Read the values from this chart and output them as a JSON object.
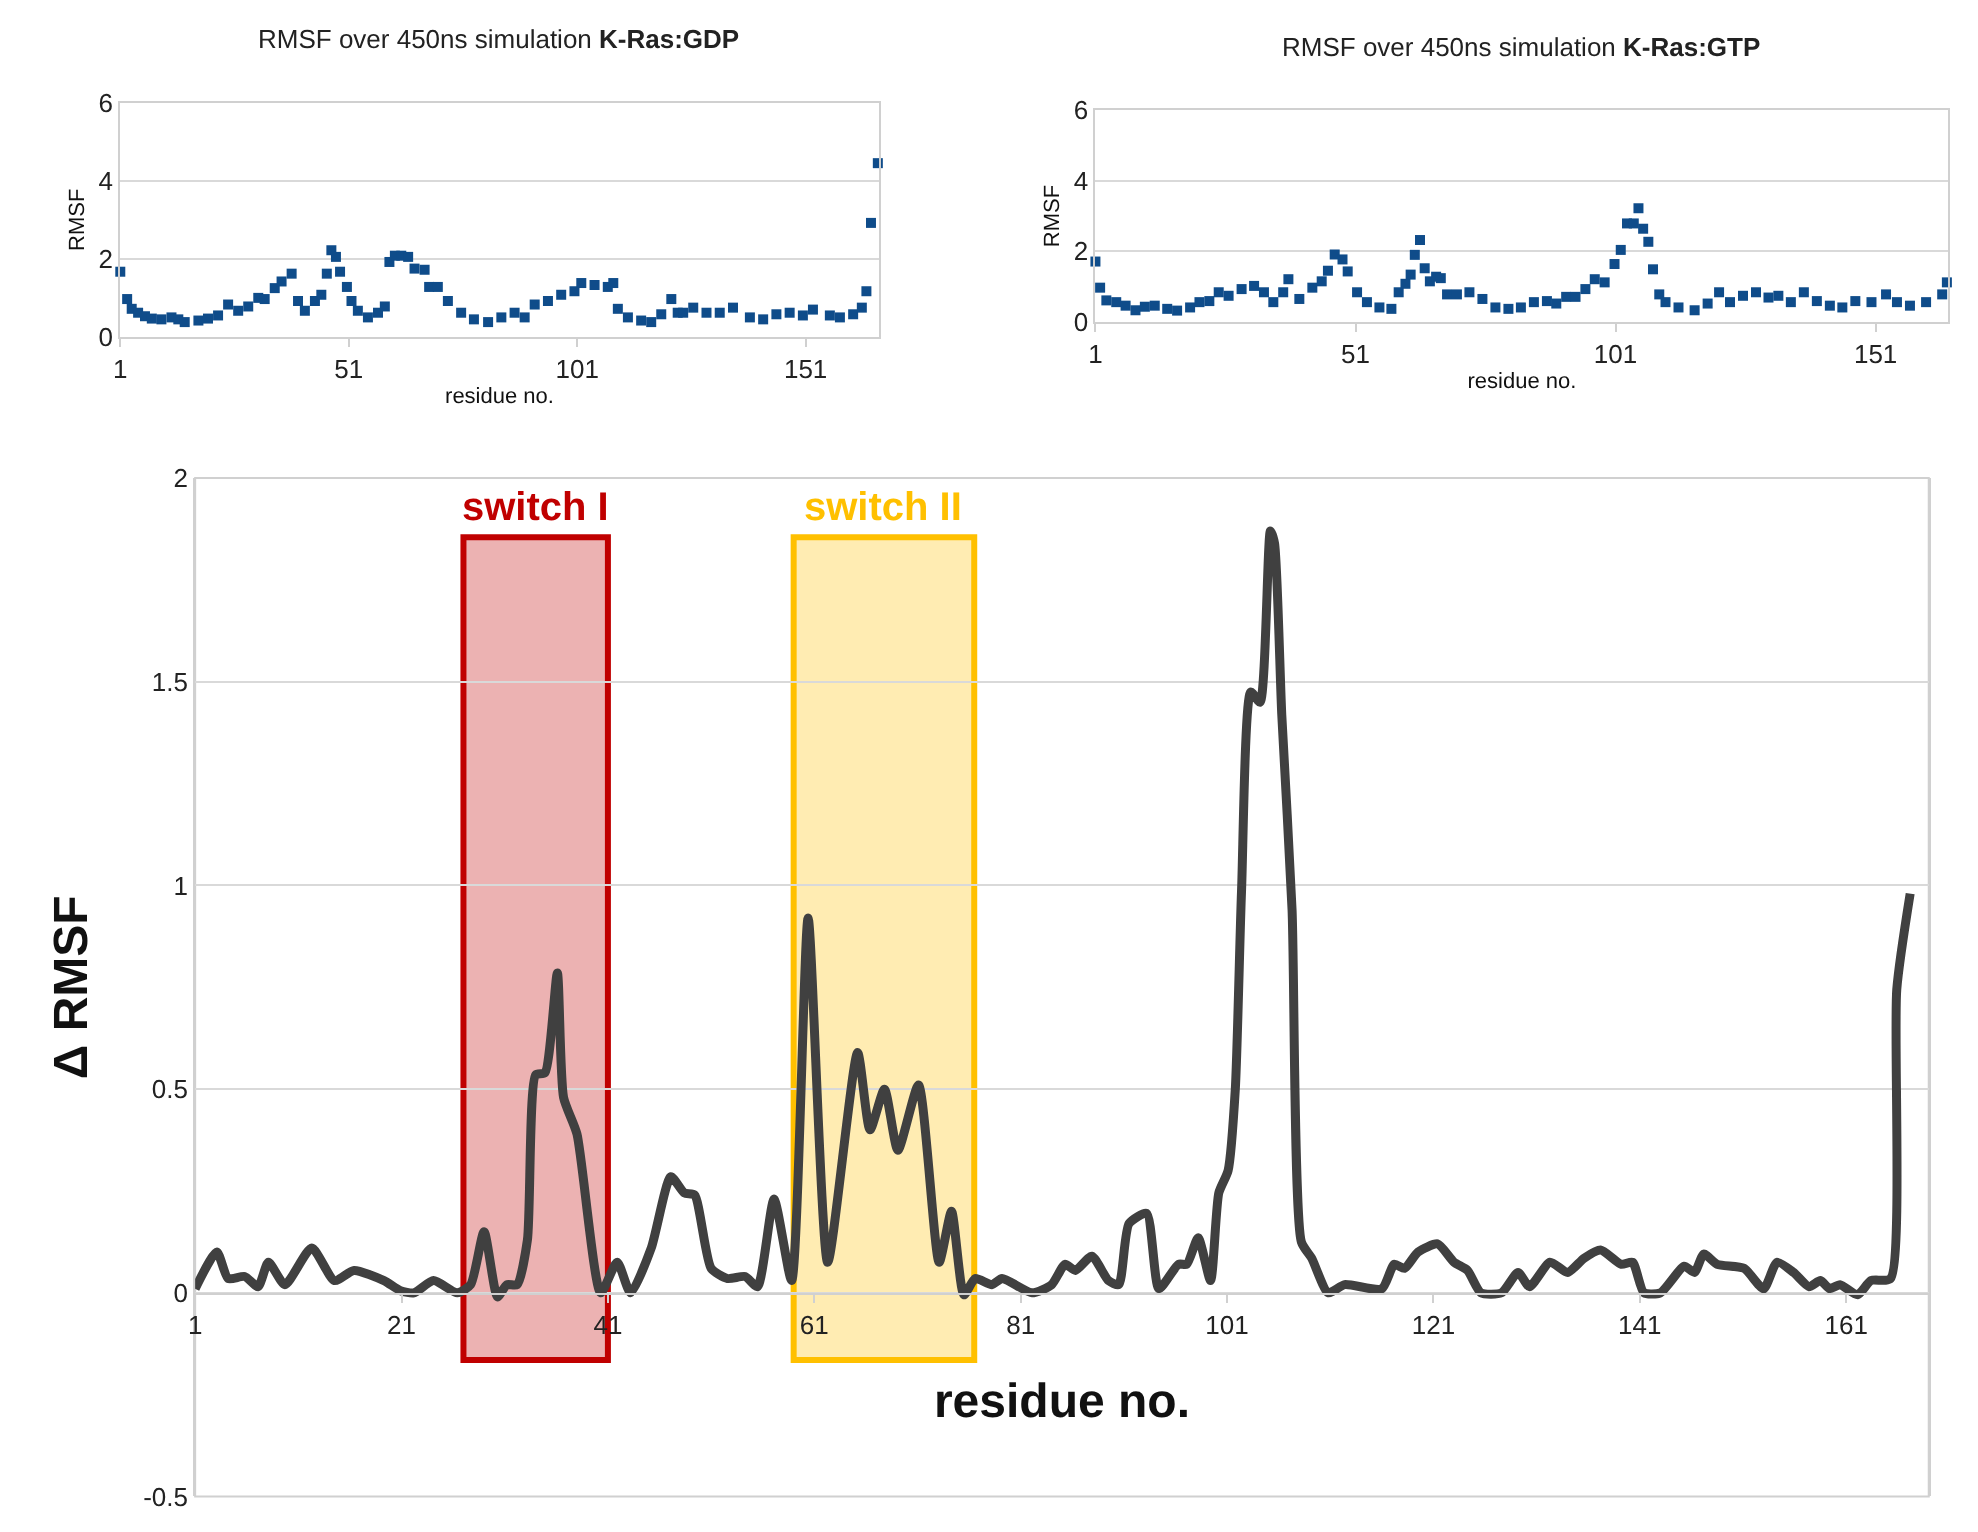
{
  "chart_data": [
    {
      "type": "scatter",
      "title": "RMSF over 450ns simulation",
      "subtitle": "K-Ras:GDP",
      "xlabel": "residue no.",
      "ylabel": "RMSF",
      "marker": "square",
      "grid": "y",
      "x": [
        1,
        2.5,
        3.5,
        4.9,
        6.4,
        7.9,
        10,
        12.2,
        13.7,
        15.1,
        18.1,
        20.2,
        22.4,
        24.6,
        26.8,
        29,
        31.2,
        32.6,
        34.8,
        36.3,
        38.5,
        39.9,
        41.4,
        43.6,
        45,
        46.2,
        47.2,
        48.2,
        49.1,
        50.6,
        51.6,
        53,
        55.2,
        57.4,
        58.9,
        59.9,
        61.1,
        62.5,
        64,
        65.4,
        67.6,
        68.6,
        70.5,
        72.7,
        75.6,
        78.4,
        81.5,
        84.4,
        87.3,
        89.5,
        91.7,
        94.6,
        97.5,
        100.4,
        101.9,
        104.8,
        107.7,
        108.9,
        109.9,
        112.1,
        115,
        117.2,
        119.4,
        121.6,
        123,
        124.2,
        126.4,
        129.3,
        132.2,
        135.1,
        138.8,
        141.7,
        144.6,
        147.5,
        150.4,
        152.6,
        156.3,
        158.5,
        161.4,
        163.3,
        164.3,
        165.3,
        166.8
      ],
      "series": [
        {
          "color": "#0f4c8a",
          "values": [
            1.67,
            0.97,
            0.72,
            0.62,
            0.53,
            0.47,
            0.45,
            0.5,
            0.45,
            0.38,
            0.42,
            0.47,
            0.55,
            0.83,
            0.67,
            0.78,
            1.0,
            0.97,
            1.25,
            1.42,
            1.62,
            0.92,
            0.67,
            0.92,
            1.08,
            1.62,
            2.22,
            2.05,
            1.67,
            1.28,
            0.92,
            0.67,
            0.5,
            0.62,
            0.78,
            1.92,
            2.08,
            2.08,
            2.05,
            1.75,
            1.72,
            1.28,
            1.28,
            0.92,
            0.62,
            0.45,
            0.38,
            0.5,
            0.62,
            0.5,
            0.83,
            0.92,
            1.08,
            1.17,
            1.38,
            1.33,
            1.28,
            1.38,
            0.72,
            0.5,
            0.42,
            0.38,
            0.58,
            0.97,
            0.62,
            0.62,
            0.75,
            0.62,
            0.62,
            0.75,
            0.5,
            0.45,
            0.58,
            0.62,
            0.55,
            0.7,
            0.55,
            0.5,
            0.58,
            0.75,
            1.17,
            2.92,
            4.45
          ]
        }
      ],
      "xlim": [
        1,
        167
      ],
      "xticks": [
        1,
        51,
        101,
        151
      ],
      "ylim": [
        0,
        6
      ],
      "yticks": [
        0,
        2,
        4,
        6
      ]
    },
    {
      "type": "scatter",
      "title": "RMSF over 450ns simulation",
      "subtitle": "K-Ras:GTP",
      "xlabel": "residue no.",
      "ylabel": "RMSF",
      "marker": "square",
      "grid": "y",
      "x": [
        1,
        1.9,
        3.1,
        5,
        6.8,
        8.7,
        10.5,
        12.4,
        14.8,
        16.7,
        19.2,
        21,
        22.9,
        24.7,
        26.6,
        29.1,
        31.5,
        33.4,
        35.2,
        37.1,
        38.1,
        40.2,
        42.7,
        44.5,
        45.7,
        47,
        48.5,
        49.5,
        51.3,
        53.2,
        55.6,
        57.9,
        59.3,
        60.6,
        61.6,
        62.4,
        63.4,
        64.3,
        65.3,
        66.5,
        67.4,
        68.6,
        70.5,
        72.9,
        75.4,
        77.9,
        80.4,
        82.8,
        85.3,
        87.8,
        89.6,
        91.5,
        93.3,
        95.2,
        97,
        98.9,
        100.8,
        102,
        103.2,
        104.5,
        105.4,
        106.3,
        107.3,
        108.2,
        109.4,
        110.6,
        113.1,
        116.2,
        118.7,
        120.9,
        123,
        125.5,
        128,
        130.4,
        132.3,
        134.7,
        137.2,
        139.7,
        142.2,
        144.6,
        147.1,
        150.2,
        153,
        155.1,
        157.6,
        160.7,
        163.8,
        164.7
      ],
      "series": [
        {
          "color": "#0f4c8a",
          "values": [
            1.71,
            0.97,
            0.61,
            0.56,
            0.46,
            0.33,
            0.43,
            0.46,
            0.37,
            0.32,
            0.41,
            0.56,
            0.59,
            0.84,
            0.74,
            0.93,
            1.02,
            0.84,
            0.56,
            0.84,
            1.21,
            0.65,
            0.97,
            1.15,
            1.45,
            1.91,
            1.77,
            1.43,
            0.84,
            0.56,
            0.41,
            0.37,
            0.84,
            1.08,
            1.34,
            1.9,
            2.32,
            1.52,
            1.15,
            1.28,
            1.24,
            0.78,
            0.78,
            0.84,
            0.65,
            0.41,
            0.37,
            0.41,
            0.56,
            0.59,
            0.52,
            0.71,
            0.71,
            0.93,
            1.21,
            1.12,
            1.64,
            2.04,
            2.79,
            2.79,
            3.22,
            2.64,
            2.27,
            1.49,
            0.78,
            0.56,
            0.41,
            0.33,
            0.52,
            0.84,
            0.56,
            0.74,
            0.84,
            0.69,
            0.74,
            0.56,
            0.84,
            0.59,
            0.46,
            0.41,
            0.59,
            0.56,
            0.78,
            0.56,
            0.46,
            0.56,
            0.78,
            1.12
          ]
        }
      ],
      "xlim": [
        1,
        165
      ],
      "xticks": [
        1,
        51,
        101,
        151
      ],
      "ylim": [
        0,
        6
      ],
      "yticks": [
        0,
        2,
        4,
        6
      ]
    },
    {
      "type": "line",
      "xlabel": "residue no.",
      "ylabel": "Δ RMSF",
      "marker": "none",
      "line_style": "solid",
      "grid": "y",
      "x": [
        1,
        3.1,
        4.2,
        5.8,
        7.1,
        8.1,
        9.7,
        12.3,
        14.5,
        16.4,
        19.3,
        20.9,
        22.2,
        24.1,
        26.4,
        27.7,
        29,
        30.3,
        31.2,
        32.2,
        33.2,
        34,
        34.9,
        36.1,
        36.7,
        38,
        40.3,
        41.9,
        43.2,
        45.2,
        47.1,
        48.4,
        49.4,
        51,
        52.6,
        54.3,
        55.5,
        57.1,
        58.8,
        60.4,
        62.3,
        65.2,
        66.4,
        67.8,
        69.1,
        71.1,
        73.1,
        74.3,
        75.5,
        76.6,
        78.2,
        79.2,
        82.1,
        84,
        85.3,
        86.3,
        87.9,
        89.5,
        90.5,
        91.5,
        93.2,
        94.4,
        96.3,
        97.1,
        98.2,
        99.4,
        100.2,
        101.1,
        101.8,
        102.4,
        103.3,
        104.2,
        105.2,
        105.6,
        106.3,
        107.3,
        108.2,
        109.2,
        110.8,
        112.4,
        116,
        117.2,
        118.2,
        119.5,
        121.4,
        123,
        124.3,
        125.6,
        127.6,
        129.2,
        130.3,
        132.3,
        134,
        135.6,
        137.2,
        139.2,
        140.3,
        141.4,
        143,
        145.3,
        146.3,
        147.2,
        148.5,
        151.1,
        153,
        154.3,
        155.9,
        157.4,
        158.5,
        159.4,
        160.4,
        162.1,
        163.4,
        165.3,
        165.9,
        167.2
      ],
      "series": [
        {
          "color": "#404040",
          "values": [
            0.01,
            0.1,
            0.035,
            0.04,
            0.015,
            0.075,
            0.02,
            0.11,
            0.03,
            0.055,
            0.03,
            0.005,
            0,
            0.03,
            0,
            0.02,
            0.15,
            -0.01,
            0.02,
            0.02,
            0.13,
            0.535,
            0.54,
            0.785,
            0.48,
            0.39,
            0,
            0.075,
            0,
            0.11,
            0.285,
            0.245,
            0.24,
            0.06,
            0.035,
            0.04,
            0.015,
            0.23,
            0.03,
            0.92,
            0.075,
            0.59,
            0.4,
            0.5,
            0.35,
            0.51,
            0.075,
            0.2,
            -0.005,
            0.035,
            0.02,
            0.035,
            0,
            0.02,
            0.07,
            0.055,
            0.09,
            0.03,
            0.02,
            0.17,
            0.195,
            0.01,
            0.07,
            0.07,
            0.135,
            0.03,
            0.245,
            0.3,
            0.5,
            0.985,
            1.475,
            1.45,
            1.87,
            1.84,
            1.42,
            0.94,
            0.125,
            0.085,
            0,
            0.02,
            0.01,
            0.07,
            0.06,
            0.1,
            0.12,
            0.075,
            0.055,
            0,
            0,
            0.05,
            0.015,
            0.075,
            0.05,
            0.085,
            0.105,
            0.07,
            0.075,
            0,
            0,
            0.065,
            0.05,
            0.095,
            0.07,
            0.06,
            0.01,
            0.075,
            0.05,
            0.015,
            0.03,
            0.01,
            0.02,
            -0.005,
            0.03,
            0.035,
            0.745,
            0.98
          ]
        }
      ],
      "bands": [
        {
          "axis": "x",
          "from": 27,
          "to": 41,
          "label": "switch I",
          "color": "#c00000"
        },
        {
          "axis": "x",
          "from": 59,
          "to": 76.5,
          "label": "switch II",
          "color": "#ffc000"
        }
      ],
      "xlim": [
        1,
        169
      ],
      "xticks": [
        1,
        21,
        41,
        61,
        81,
        101,
        121,
        141,
        161
      ],
      "ylim": [
        -0.5,
        2
      ],
      "yticks": [
        -0.5,
        0,
        0.5,
        1,
        1.5,
        2
      ]
    }
  ]
}
